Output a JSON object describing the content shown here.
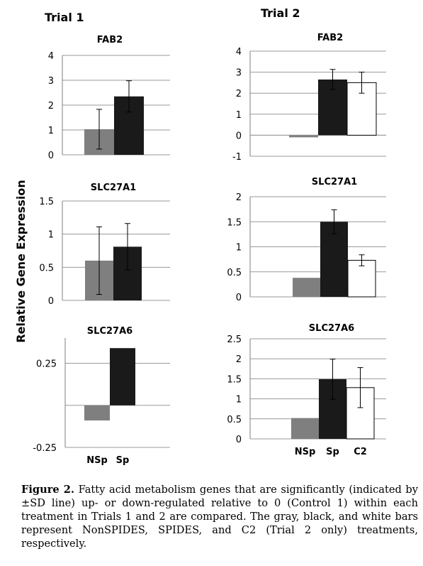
{
  "trials": [
    "Trial 1",
    "Trial 2"
  ],
  "ylabel": "Relative Gene Expression",
  "colors": {
    "gray": "#7f7f7f",
    "black": "#1a1a1a",
    "white": "#ffffff"
  },
  "chart_data": [
    {
      "type": "bar",
      "trial": "Trial 1",
      "title": "FAB2",
      "categories": [
        "NSp",
        "Sp"
      ],
      "values": [
        1.03,
        2.35
      ],
      "errors": [
        0.8,
        0.63
      ],
      "ylim": [
        0,
        4
      ],
      "ticks": [
        0,
        1,
        2,
        3,
        4
      ],
      "tick_labels": [
        "0",
        "1",
        "2",
        "3",
        "4"
      ],
      "grid": true,
      "show_xlabels": false
    },
    {
      "type": "bar",
      "trial": "Trial 1",
      "title": "SLC27A1",
      "categories": [
        "NSp",
        "Sp"
      ],
      "values": [
        0.6,
        0.81
      ],
      "errors": [
        0.51,
        0.35
      ],
      "ylim": [
        0,
        1.5
      ],
      "ticks": [
        0,
        0.5,
        1,
        1.5
      ],
      "tick_labels": [
        "0",
        "0.5",
        "1",
        "1.5"
      ],
      "grid": true,
      "show_xlabels": false
    },
    {
      "type": "bar",
      "trial": "Trial 1",
      "title": "SLC27A6",
      "categories": [
        "NSp",
        "Sp"
      ],
      "values": [
        -0.09,
        0.34
      ],
      "errors": [
        null,
        null
      ],
      "ylim": [
        -0.25,
        0.4
      ],
      "ticks": [
        -0.25,
        0.25
      ],
      "tick_labels": [
        "-0.25",
        "0.25"
      ],
      "grid": true,
      "show_xlabels": true
    },
    {
      "type": "bar",
      "trial": "Trial 2",
      "title": "FAB2",
      "categories": [
        "NSp",
        "Sp",
        "C2"
      ],
      "values": [
        -0.1,
        2.65,
        2.5
      ],
      "errors": [
        null,
        0.48,
        0.5
      ],
      "ylim": [
        -1,
        4
      ],
      "ticks": [
        -1,
        0,
        1,
        2,
        3,
        4
      ],
      "tick_labels": [
        "-1",
        "0",
        "1",
        "2",
        "3",
        "4"
      ],
      "grid": true,
      "show_xlabels": false
    },
    {
      "type": "bar",
      "trial": "Trial 2",
      "title": "SLC27A1",
      "categories": [
        "NSp",
        "Sp",
        "C2"
      ],
      "values": [
        0.38,
        1.5,
        0.73
      ],
      "errors": [
        null,
        0.24,
        0.11
      ],
      "ylim": [
        0,
        2
      ],
      "ticks": [
        0,
        0.5,
        1,
        1.5,
        2
      ],
      "tick_labels": [
        "0",
        "0.5",
        "1",
        "1.5",
        "2"
      ],
      "grid": true,
      "show_xlabels": false
    },
    {
      "type": "bar",
      "trial": "Trial 2",
      "title": "SLC27A6",
      "categories": [
        "NSp",
        "Sp",
        "C2"
      ],
      "values": [
        0.52,
        1.49,
        1.28
      ],
      "errors": [
        null,
        0.5,
        0.5
      ],
      "ylim": [
        0,
        2.5
      ],
      "ticks": [
        0,
        0.5,
        1,
        1.5,
        2,
        2.5
      ],
      "tick_labels": [
        "0",
        "0.5",
        "1",
        "1.5",
        "2",
        "2.5"
      ],
      "grid": true,
      "show_xlabels": true
    }
  ],
  "caption": {
    "label": "Figure 2.",
    "text": "Fatty acid metabolism genes that are significantly (indicated by ±SD line) up- or down-regulated relative to 0 (Control 1) within each treatment in Trials 1 and 2 are compared. The gray, black, and white bars represent NonSPIDES, SPIDES, and C2 (Trial 2 only) treatments, respectively."
  }
}
